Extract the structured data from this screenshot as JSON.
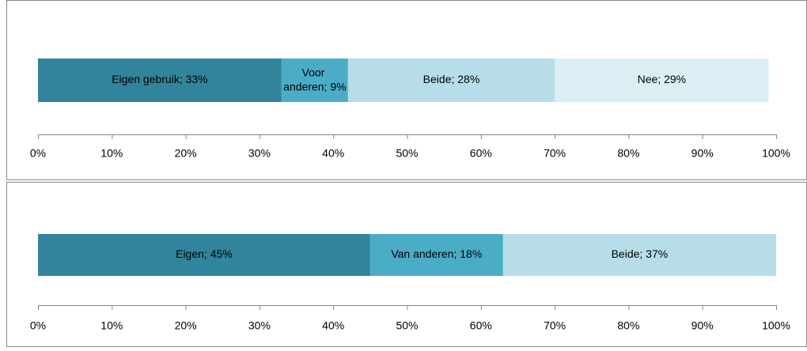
{
  "chart_data": [
    {
      "type": "bar",
      "orientation": "horizontal",
      "stacked": true,
      "categories": [
        null
      ],
      "series": [
        {
          "name": "Eigen gebruik",
          "color": "#31849b",
          "values": [
            33
          ],
          "value_labels": [
            "Eigen gebruik; 33%"
          ]
        },
        {
          "name": "Voor anderen",
          "color": "#4bacc6",
          "values": [
            9
          ],
          "value_labels": [
            "Voor anderen; 9%"
          ]
        },
        {
          "name": "Beide",
          "color": "#b7dde8",
          "values": [
            28
          ],
          "value_labels": [
            "Beide; 28%"
          ]
        },
        {
          "name": "Nee",
          "color": "#daeef3",
          "values": [
            29
          ],
          "value_labels": [
            "Nee; 29%"
          ]
        }
      ],
      "xlim": [
        0,
        100
      ],
      "xticks": [
        {
          "value": 0,
          "label": "0%"
        },
        {
          "value": 10,
          "label": "10%"
        },
        {
          "value": 20,
          "label": "20%"
        },
        {
          "value": 30,
          "label": "30%"
        },
        {
          "value": 40,
          "label": "40%"
        },
        {
          "value": 50,
          "label": "50%"
        },
        {
          "value": 60,
          "label": "60%"
        },
        {
          "value": 70,
          "label": "70%"
        },
        {
          "value": 80,
          "label": "80%"
        },
        {
          "value": 90,
          "label": "90%"
        },
        {
          "value": 100,
          "label": "100%"
        }
      ],
      "grid": false,
      "legend": false
    },
    {
      "type": "bar",
      "orientation": "horizontal",
      "stacked": true,
      "categories": [
        null
      ],
      "series": [
        {
          "name": "Eigen",
          "color": "#31849b",
          "values": [
            45
          ],
          "value_labels": [
            "Eigen; 45%"
          ]
        },
        {
          "name": "Van anderen",
          "color": "#4bacc6",
          "values": [
            18
          ],
          "value_labels": [
            "Van anderen; 18%"
          ]
        },
        {
          "name": "Beide",
          "color": "#b7dde8",
          "values": [
            37
          ],
          "value_labels": [
            "Beide; 37%"
          ]
        }
      ],
      "xlim": [
        0,
        100
      ],
      "xticks": [
        {
          "value": 0,
          "label": "0%"
        },
        {
          "value": 10,
          "label": "10%"
        },
        {
          "value": 20,
          "label": "20%"
        },
        {
          "value": 30,
          "label": "30%"
        },
        {
          "value": 40,
          "label": "40%"
        },
        {
          "value": 50,
          "label": "50%"
        },
        {
          "value": 60,
          "label": "60%"
        },
        {
          "value": 70,
          "label": "70%"
        },
        {
          "value": 80,
          "label": "80%"
        },
        {
          "value": 90,
          "label": "90%"
        },
        {
          "value": 100,
          "label": "100%"
        }
      ],
      "grid": false,
      "legend": false
    }
  ]
}
